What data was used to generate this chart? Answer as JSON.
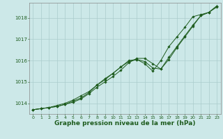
{
  "background_color": "#cce8e8",
  "grid_color": "#aacccc",
  "line_color": "#1e5c1e",
  "marker_color": "#1e5c1e",
  "xlabel": "Graphe pression niveau de la mer (hPa)",
  "xlabel_fontsize": 6.5,
  "ylim": [
    1013.5,
    1018.7
  ],
  "xlim": [
    -0.5,
    23.5
  ],
  "yticks": [
    1014,
    1015,
    1016,
    1017,
    1018
  ],
  "xticks": [
    0,
    1,
    2,
    3,
    4,
    5,
    6,
    7,
    8,
    9,
    10,
    11,
    12,
    13,
    14,
    15,
    16,
    17,
    18,
    19,
    20,
    21,
    22,
    23
  ],
  "line1": [
    1013.7,
    1013.75,
    1013.8,
    1013.85,
    1013.95,
    1014.05,
    1014.2,
    1014.45,
    1014.75,
    1015.0,
    1015.25,
    1015.55,
    1015.9,
    1016.1,
    1016.1,
    1015.85,
    1015.6,
    1016.05,
    1016.6,
    1017.1,
    1017.6,
    1018.1,
    1018.25,
    1018.55
  ],
  "line2": [
    1013.7,
    1013.75,
    1013.8,
    1013.85,
    1013.95,
    1014.1,
    1014.25,
    1014.5,
    1014.85,
    1015.1,
    1015.4,
    1015.7,
    1015.95,
    1016.05,
    1015.95,
    1015.65,
    1015.6,
    1016.15,
    1016.65,
    1017.15,
    1017.65,
    1018.1,
    1018.25,
    1018.5
  ],
  "line3": [
    1013.7,
    1013.75,
    1013.8,
    1013.9,
    1014.0,
    1014.15,
    1014.35,
    1014.55,
    1014.85,
    1015.15,
    1015.4,
    1015.7,
    1016.0,
    1016.05,
    1015.85,
    1015.5,
    1016.0,
    1016.65,
    1017.1,
    1017.55,
    1018.05,
    1018.15,
    1018.25,
    1018.55
  ]
}
